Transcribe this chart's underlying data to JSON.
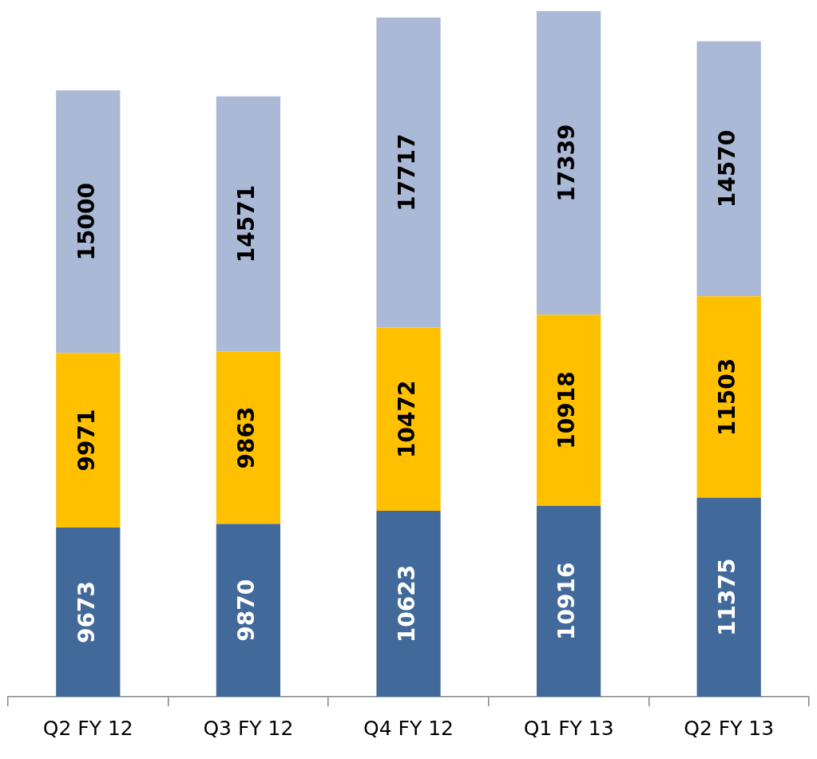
{
  "chart_data": {
    "type": "bar",
    "stacked": true,
    "data_labels": true,
    "legend": false,
    "categories": [
      "Q2 FY 12",
      "Q3 FY 12",
      "Q4 FY 12",
      "Q1 FY 13",
      "Q2 FY 13"
    ],
    "series": [
      {
        "color": "#41699a",
        "values": [
          9673,
          9870,
          10623,
          10916,
          11375
        ]
      },
      {
        "color": "#ffc000",
        "values": [
          9971,
          9863,
          10472,
          10918,
          11503
        ]
      },
      {
        "color": "#aab9d6",
        "values": [
          15000,
          14571,
          17717,
          17339,
          14570
        ]
      }
    ]
  }
}
